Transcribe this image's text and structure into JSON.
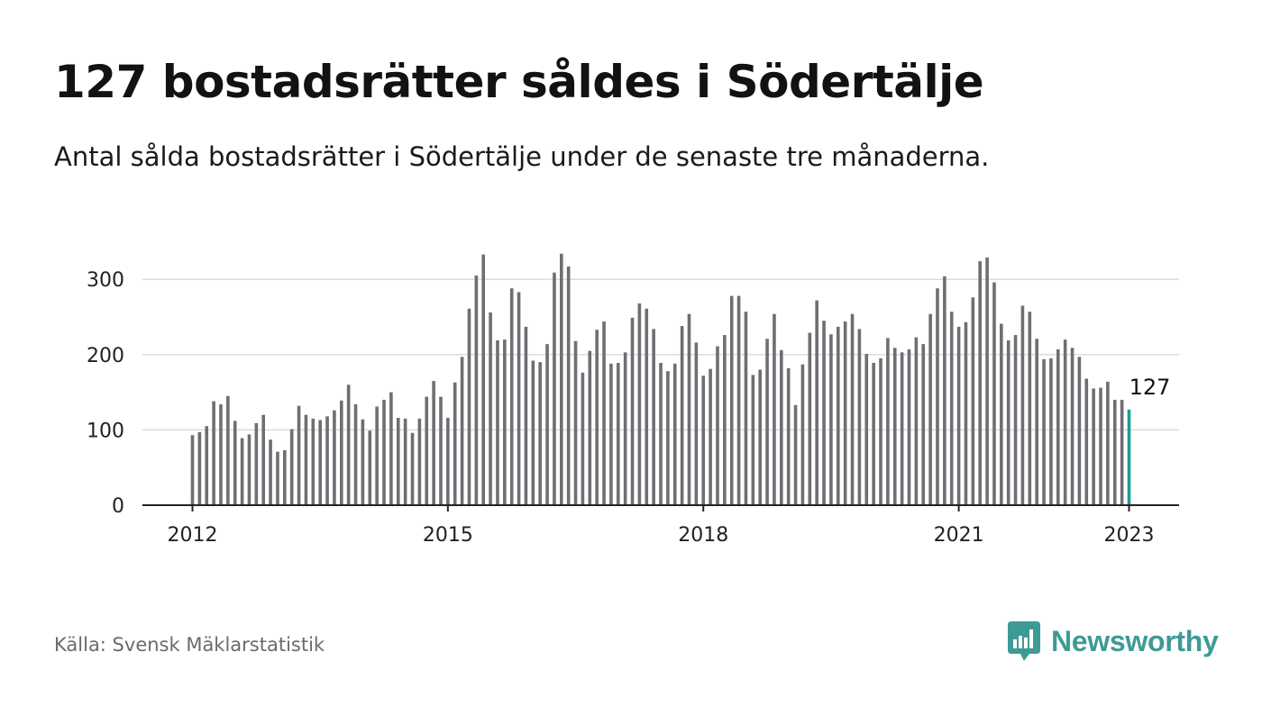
{
  "header": {
    "title": "127 bostadsrätter såldes i Södertälje",
    "subtitle": "Antal sålda bostadsrätter i Södertälje under de senaste tre månaderna."
  },
  "footer": {
    "source": "Källa: Svensk Mäklarstatistik",
    "brand": "Newsworthy"
  },
  "colors": {
    "bar": "#6e6e73",
    "highlight": "#1a9e94",
    "grid": "#dcdcdc",
    "brand": "#3e9a96"
  },
  "chart_data": {
    "type": "bar",
    "title": "127 bostadsrätter såldes i Södertälje",
    "subtitle": "Antal sålda bostadsrätter i Södertälje under de senaste tre månaderna.",
    "xlabel": "",
    "ylabel": "",
    "ylim": [
      0,
      350
    ],
    "yticks": [
      0,
      100,
      200,
      300
    ],
    "xtick_labels": [
      "2012",
      "2015",
      "2018",
      "2021",
      "2023"
    ],
    "xtick_indices": [
      0,
      36,
      72,
      108,
      132
    ],
    "grid": true,
    "start_label": "2012",
    "highlight_label": "127",
    "values": [
      93,
      97,
      105,
      138,
      134,
      145,
      112,
      89,
      94,
      109,
      120,
      87,
      71,
      73,
      101,
      132,
      120,
      115,
      113,
      118,
      126,
      139,
      160,
      134,
      114,
      99,
      131,
      140,
      150,
      116,
      115,
      96,
      115,
      144,
      165,
      144,
      116,
      163,
      197,
      261,
      305,
      333,
      256,
      219,
      220,
      288,
      283,
      237,
      192,
      190,
      214,
      309,
      334,
      317,
      218,
      176,
      205,
      233,
      244,
      188,
      189,
      203,
      249,
      268,
      261,
      234,
      189,
      178,
      188,
      238,
      254,
      216,
      172,
      181,
      211,
      226,
      278,
      278,
      257,
      173,
      180,
      221,
      254,
      206,
      182,
      133,
      187,
      229,
      272,
      245,
      227,
      237,
      244,
      254,
      234,
      201,
      189,
      195,
      222,
      209,
      203,
      207,
      223,
      214,
      254,
      288,
      304,
      257,
      237,
      243,
      276,
      324,
      329,
      296,
      241,
      219,
      226,
      265,
      257,
      221,
      194,
      195,
      207,
      220,
      209,
      197,
      168,
      155,
      156,
      164,
      140,
      140,
      127
    ]
  }
}
